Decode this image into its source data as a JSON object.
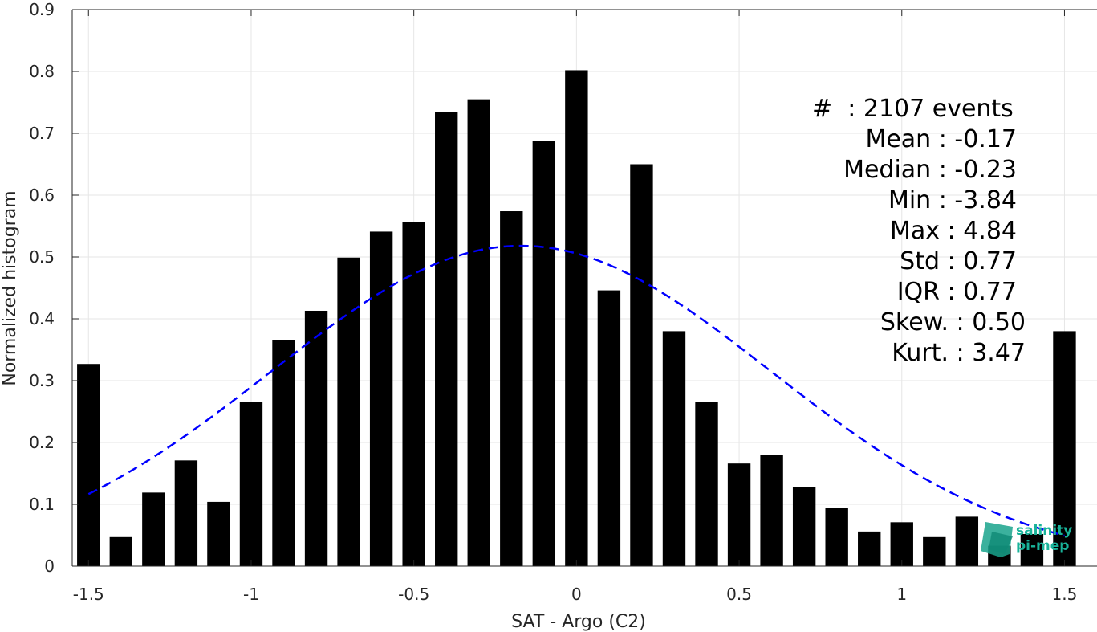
{
  "chart_data": {
    "type": "bar",
    "xlabel": "SAT - Argo (C2)",
    "ylabel": "Normalized histogram",
    "xlim": [
      -1.55,
      1.6
    ],
    "ylim": [
      0,
      0.9
    ],
    "x_ticks": [
      -1.5,
      -1,
      -0.5,
      0,
      0.5,
      1,
      1.5
    ],
    "x_tick_labels": [
      "-1.5",
      "-1",
      "-0.5",
      "0",
      "0.5",
      "1",
      "1.5"
    ],
    "y_ticks": [
      0,
      0.1,
      0.2,
      0.3,
      0.4,
      0.5,
      0.6,
      0.7,
      0.8,
      0.9
    ],
    "y_tick_labels": [
      "0",
      "0.1",
      "0.2",
      "0.3",
      "0.4",
      "0.5",
      "0.6",
      "0.7",
      "0.8",
      "0.9"
    ],
    "grid": true,
    "bar_width": 0.07,
    "bar_color": "#000000",
    "x": [
      -1.5,
      -1.4,
      -1.3,
      -1.2,
      -1.1,
      -1.0,
      -0.9,
      -0.8,
      -0.7,
      -0.6,
      -0.5,
      -0.4,
      -0.3,
      -0.2,
      -0.1,
      0.0,
      0.1,
      0.2,
      0.3,
      0.4,
      0.5,
      0.6,
      0.7,
      0.8,
      0.9,
      1.0,
      1.1,
      1.2,
      1.3,
      1.4,
      1.5
    ],
    "values": [
      0.327,
      0.047,
      0.119,
      0.171,
      0.104,
      0.266,
      0.366,
      0.413,
      0.499,
      0.541,
      0.556,
      0.735,
      0.755,
      0.574,
      0.688,
      0.802,
      0.446,
      0.65,
      0.38,
      0.266,
      0.166,
      0.18,
      0.128,
      0.094,
      0.056,
      0.071,
      0.047,
      0.08,
      0.033,
      0.052,
      0.38
    ],
    "gaussian_fit": {
      "mean": -0.17,
      "std": 0.77,
      "color": "#0000ff",
      "style": "dashed",
      "x_range": [
        -1.5,
        1.5
      ]
    },
    "stats_text": [
      "#  : 2107 events",
      "Mean : -0.17",
      "Median : -0.23",
      "Min : -3.84",
      "Max : 4.84",
      "Std : 0.77",
      "IQR : 0.77",
      "Skew. : 0.50",
      "Kurt. : 3.47"
    ]
  },
  "watermark": {
    "line1": "salinity",
    "line2": "pi-mep",
    "color": "#19b39a"
  }
}
